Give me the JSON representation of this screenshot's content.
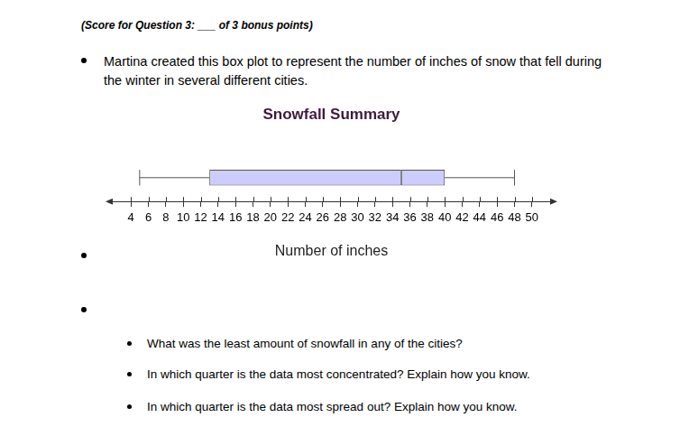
{
  "header": "(Score for Question 3: ___ of 3 bonus points)",
  "intro": "Martina created this box plot to represent the number of inches of snow that fell during the winter in several different cities.",
  "chart_data": {
    "type": "boxplot",
    "title": "Snowfall Summary",
    "x_label": "Number of inches",
    "orientation": "horizontal",
    "values": {
      "min": 5,
      "q1": 13,
      "median": 35,
      "q3": 40,
      "max": 48
    },
    "color": "#ccccff",
    "xlim": [
      1.5,
      52.5
    ],
    "xticks": [
      4,
      6,
      8,
      10,
      12,
      14,
      16,
      18,
      20,
      22,
      24,
      26,
      28,
      30,
      32,
      34,
      36,
      38,
      40,
      42,
      44,
      46,
      48,
      50
    ],
    "grid": false
  },
  "questions": [
    "What was the least amount of snowfall in any of the cities?",
    "In which quarter is the data most concentrated? Explain how you know.",
    "In which quarter is the data most spread out? Explain how you know."
  ]
}
